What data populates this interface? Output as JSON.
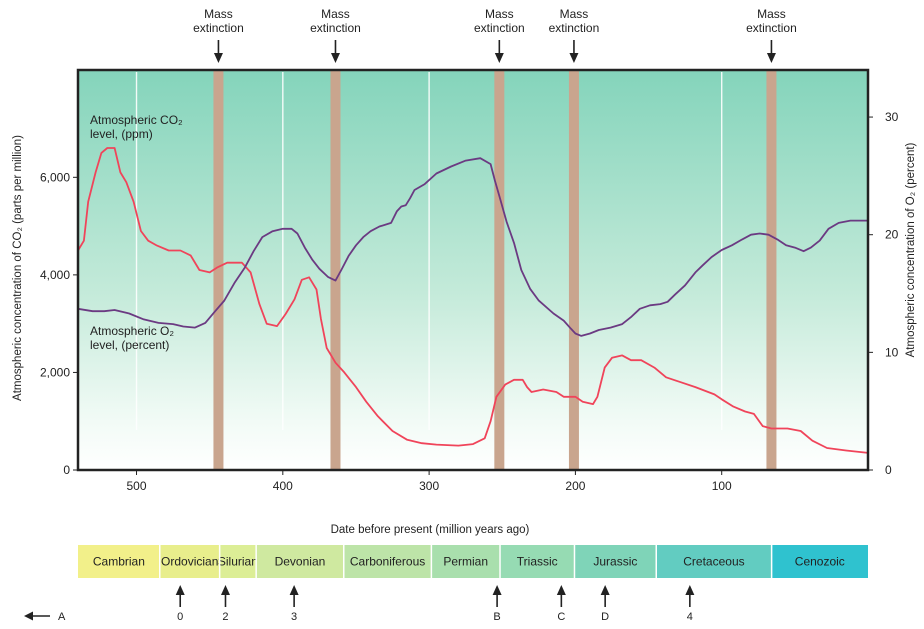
{
  "chart_data": {
    "type": "line",
    "xlabel": "Date before present (million years ago)",
    "ylabel_left": "Atmospheric concentration of CO₂ (parts per million)",
    "ylabel_right": "Atmospheric concentration of O₂ (percent)",
    "xlim": [
      540,
      0
    ],
    "ylim_left": [
      0,
      8200
    ],
    "ylim_right": [
      0,
      34
    ],
    "x_ticks": [
      {
        "value": 500,
        "label": "500"
      },
      {
        "value": 400,
        "label": "400"
      },
      {
        "value": 300,
        "label": "300"
      },
      {
        "value": 200,
        "label": "200"
      },
      {
        "value": 100,
        "label": "100"
      }
    ],
    "y_left_ticks": [
      {
        "value": 0,
        "label": "0"
      },
      {
        "value": 2000,
        "label": "2,000"
      },
      {
        "value": 4000,
        "label": "4,000"
      },
      {
        "value": 6000,
        "label": "6,000"
      }
    ],
    "y_right_ticks": [
      {
        "value": 0,
        "label": "0"
      },
      {
        "value": 10,
        "label": "10"
      },
      {
        "value": 20,
        "label": "20"
      },
      {
        "value": 30,
        "label": "30"
      }
    ],
    "series": [
      {
        "id": "co2",
        "name_lines": [
          "Atmospheric CO₂",
          "level, (ppm)"
        ],
        "axis": "left",
        "color": "#f0445a",
        "points": [
          [
            540,
            4500
          ],
          [
            536,
            4700
          ],
          [
            533,
            5500
          ],
          [
            528,
            6100
          ],
          [
            524,
            6500
          ],
          [
            520,
            6600
          ],
          [
            515,
            6600
          ],
          [
            511,
            6100
          ],
          [
            507,
            5900
          ],
          [
            502,
            5500
          ],
          [
            497,
            4900
          ],
          [
            492,
            4700
          ],
          [
            486,
            4600
          ],
          [
            478,
            4500
          ],
          [
            470,
            4500
          ],
          [
            463,
            4400
          ],
          [
            457,
            4100
          ],
          [
            450,
            4050
          ],
          [
            445,
            4150
          ],
          [
            438,
            4250
          ],
          [
            428,
            4250
          ],
          [
            422,
            4050
          ],
          [
            416,
            3400
          ],
          [
            411,
            3000
          ],
          [
            404,
            2950
          ],
          [
            398,
            3200
          ],
          [
            392,
            3500
          ],
          [
            387,
            3900
          ],
          [
            382,
            3950
          ],
          [
            377,
            3700
          ],
          [
            374,
            3100
          ],
          [
            370,
            2500
          ],
          [
            364,
            2200
          ],
          [
            358,
            2000
          ],
          [
            350,
            1700
          ],
          [
            343,
            1400
          ],
          [
            335,
            1100
          ],
          [
            325,
            800
          ],
          [
            315,
            620
          ],
          [
            305,
            550
          ],
          [
            295,
            520
          ],
          [
            280,
            500
          ],
          [
            270,
            530
          ],
          [
            262,
            650
          ],
          [
            258,
            1000
          ],
          [
            254,
            1500
          ],
          [
            248,
            1750
          ],
          [
            242,
            1850
          ],
          [
            236,
            1850
          ],
          [
            233,
            1700
          ],
          [
            230,
            1600
          ],
          [
            222,
            1650
          ],
          [
            213,
            1600
          ],
          [
            208,
            1500
          ],
          [
            200,
            1500
          ],
          [
            195,
            1400
          ],
          [
            188,
            1350
          ],
          [
            185,
            1500
          ],
          [
            180,
            2100
          ],
          [
            175,
            2300
          ],
          [
            168,
            2350
          ],
          [
            162,
            2250
          ],
          [
            155,
            2250
          ],
          [
            146,
            2100
          ],
          [
            138,
            1900
          ],
          [
            128,
            1800
          ],
          [
            118,
            1700
          ],
          [
            105,
            1550
          ],
          [
            100,
            1450
          ],
          [
            92,
            1300
          ],
          [
            84,
            1200
          ],
          [
            78,
            1150
          ],
          [
            72,
            900
          ],
          [
            66,
            850
          ],
          [
            55,
            850
          ],
          [
            46,
            800
          ],
          [
            38,
            600
          ],
          [
            28,
            450
          ],
          [
            15,
            400
          ],
          [
            0,
            350
          ]
        ]
      },
      {
        "id": "o2",
        "name_lines": [
          "Atmospheric O₂",
          "level, (percent)"
        ],
        "axis": "right",
        "color": "#6b3a82",
        "points": [
          [
            540,
            13.7
          ],
          [
            530,
            13.5
          ],
          [
            522,
            13.5
          ],
          [
            515,
            13.6
          ],
          [
            505,
            13.3
          ],
          [
            495,
            12.8
          ],
          [
            485,
            12.5
          ],
          [
            475,
            12.4
          ],
          [
            468,
            12.2
          ],
          [
            460,
            12.1
          ],
          [
            453,
            12.5
          ],
          [
            447,
            13.4
          ],
          [
            440,
            14.4
          ],
          [
            433,
            15.9
          ],
          [
            426,
            17.2
          ],
          [
            420,
            18.6
          ],
          [
            414,
            19.8
          ],
          [
            407,
            20.3
          ],
          [
            400,
            20.5
          ],
          [
            394,
            20.5
          ],
          [
            390,
            20.1
          ],
          [
            385,
            18.9
          ],
          [
            380,
            17.9
          ],
          [
            375,
            17.1
          ],
          [
            369,
            16.4
          ],
          [
            364,
            16.1
          ],
          [
            360,
            17.0
          ],
          [
            355,
            18.2
          ],
          [
            350,
            19.1
          ],
          [
            345,
            19.8
          ],
          [
            340,
            20.3
          ],
          [
            334,
            20.7
          ],
          [
            326,
            21.0
          ],
          [
            322,
            22.0
          ],
          [
            319,
            22.4
          ],
          [
            316,
            22.5
          ],
          [
            313,
            23.1
          ],
          [
            310,
            23.8
          ],
          [
            303,
            24.3
          ],
          [
            295,
            25.2
          ],
          [
            285,
            25.8
          ],
          [
            275,
            26.3
          ],
          [
            265,
            26.5
          ],
          [
            258,
            26.0
          ],
          [
            255,
            24.6
          ],
          [
            252,
            23.3
          ],
          [
            247,
            21.1
          ],
          [
            242,
            19.3
          ],
          [
            237,
            17.0
          ],
          [
            231,
            15.4
          ],
          [
            225,
            14.4
          ],
          [
            215,
            13.3
          ],
          [
            208,
            12.7
          ],
          [
            203,
            12.0
          ],
          [
            200,
            11.6
          ],
          [
            196,
            11.4
          ],
          [
            190,
            11.6
          ],
          [
            184,
            11.9
          ],
          [
            176,
            12.1
          ],
          [
            168,
            12.4
          ],
          [
            162,
            13.0
          ],
          [
            156,
            13.7
          ],
          [
            149,
            14.0
          ],
          [
            142,
            14.1
          ],
          [
            137,
            14.3
          ],
          [
            132,
            14.9
          ],
          [
            125,
            15.7
          ],
          [
            118,
            16.8
          ],
          [
            113,
            17.4
          ],
          [
            107,
            18.1
          ],
          [
            100,
            18.7
          ],
          [
            93,
            19.1
          ],
          [
            86,
            19.6
          ],
          [
            80,
            20.0
          ],
          [
            74,
            20.1
          ],
          [
            68,
            20.0
          ],
          [
            62,
            19.6
          ],
          [
            56,
            19.1
          ],
          [
            50,
            18.9
          ],
          [
            44,
            18.6
          ],
          [
            39,
            18.9
          ],
          [
            33,
            19.5
          ],
          [
            27,
            20.5
          ],
          [
            20,
            21.0
          ],
          [
            12,
            21.2
          ],
          [
            5,
            21.2
          ],
          [
            0,
            21.2
          ]
        ]
      }
    ],
    "mass_extinctions": [
      {
        "label_lines": [
          "Mass",
          "extinction"
        ],
        "x": 444
      },
      {
        "label_lines": [
          "Mass",
          "extinction"
        ],
        "x": 364
      },
      {
        "label_lines": [
          "Mass",
          "extinction"
        ],
        "x": 252
      },
      {
        "label_lines": [
          "Mass",
          "extinction"
        ],
        "x": 201
      },
      {
        "label_lines": [
          "Mass",
          "extinction"
        ],
        "x": 66
      }
    ],
    "periods": [
      {
        "name": "Cambrian",
        "start": 541,
        "end": 485,
        "color": "#f2f08a"
      },
      {
        "name": "Ordovician",
        "start": 485,
        "end": 444,
        "color": "#e8ee8c"
      },
      {
        "name": "Silurian",
        "start": 444,
        "end": 419,
        "color": "#dcee96"
      },
      {
        "name": "Devonian",
        "start": 419,
        "end": 359,
        "color": "#cfe9a0"
      },
      {
        "name": "Carboniferous",
        "start": 359,
        "end": 299,
        "color": "#bde4a8"
      },
      {
        "name": "Permian",
        "start": 299,
        "end": 252,
        "color": "#a9dfad"
      },
      {
        "name": "Triassic",
        "start": 252,
        "end": 201,
        "color": "#96dbb3"
      },
      {
        "name": "Jurassic",
        "start": 201,
        "end": 145,
        "color": "#7fd4b8"
      },
      {
        "name": "Cretaceous",
        "start": 145,
        "end": 66,
        "color": "#62ccc1"
      },
      {
        "name": "Cenozoic",
        "start": 66,
        "end": 0,
        "color": "#2fc2cf"
      }
    ],
    "markers": [
      {
        "label": "A",
        "type": "left-arrow"
      },
      {
        "label": "0",
        "x": 471
      },
      {
        "label": "2",
        "x": 440
      },
      {
        "label": "3",
        "x": 393
      },
      {
        "label": "B",
        "x": 254
      },
      {
        "label": "C",
        "x": 210
      },
      {
        "label": "D",
        "x": 180
      },
      {
        "label": "4",
        "x": 122
      }
    ]
  }
}
